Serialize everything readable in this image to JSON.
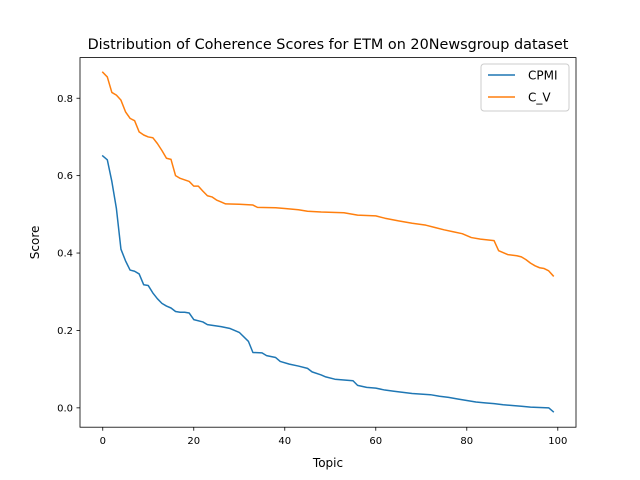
{
  "chart_data": {
    "type": "line",
    "title": "Distribution of Coherence Scores for ETM on 20Newsgroup dataset",
    "xlabel": "Topic",
    "ylabel": "Score",
    "xlim": [
      -5,
      104
    ],
    "ylim": [
      -0.05,
      0.905
    ],
    "xticks": [
      0,
      20,
      40,
      60,
      80,
      100
    ],
    "xtick_labels": [
      "0",
      "20",
      "40",
      "60",
      "80",
      "100"
    ],
    "yticks": [
      0.0,
      0.2,
      0.4,
      0.6,
      0.8
    ],
    "ytick_labels": [
      "0.0",
      "0.2",
      "0.4",
      "0.6",
      "0.8"
    ],
    "grid": false,
    "legend_position": "top-right",
    "anchors_cpmi": [
      [
        0,
        0.651
      ],
      [
        1,
        0.641
      ],
      [
        2,
        0.585
      ],
      [
        3,
        0.515
      ],
      [
        4,
        0.41
      ],
      [
        5,
        0.38
      ],
      [
        6,
        0.356
      ],
      [
        7,
        0.353
      ],
      [
        8,
        0.346
      ],
      [
        9,
        0.318
      ],
      [
        10,
        0.316
      ],
      [
        11,
        0.297
      ],
      [
        12,
        0.282
      ],
      [
        13,
        0.27
      ],
      [
        14,
        0.263
      ],
      [
        15,
        0.258
      ],
      [
        16,
        0.249
      ],
      [
        17,
        0.247
      ],
      [
        18,
        0.247
      ],
      [
        19,
        0.245
      ],
      [
        20,
        0.228
      ],
      [
        22,
        0.222
      ],
      [
        23,
        0.215
      ],
      [
        26,
        0.21
      ],
      [
        28,
        0.205
      ],
      [
        30,
        0.195
      ],
      [
        32,
        0.172
      ],
      [
        33,
        0.143
      ],
      [
        35,
        0.142
      ],
      [
        36,
        0.135
      ],
      [
        38,
        0.13
      ],
      [
        39,
        0.12
      ],
      [
        41,
        0.113
      ],
      [
        43,
        0.108
      ],
      [
        45,
        0.102
      ],
      [
        46,
        0.093
      ],
      [
        48,
        0.085
      ],
      [
        49,
        0.08
      ],
      [
        51,
        0.074
      ],
      [
        53,
        0.072
      ],
      [
        55,
        0.07
      ],
      [
        56,
        0.058
      ],
      [
        58,
        0.053
      ],
      [
        60,
        0.051
      ],
      [
        62,
        0.046
      ],
      [
        64,
        0.043
      ],
      [
        66,
        0.04
      ],
      [
        68,
        0.037
      ],
      [
        72,
        0.034
      ],
      [
        74,
        0.03
      ],
      [
        76,
        0.027
      ],
      [
        78,
        0.023
      ],
      [
        80,
        0.019
      ],
      [
        82,
        0.015
      ],
      [
        84,
        0.013
      ],
      [
        86,
        0.011
      ],
      [
        88,
        0.008
      ],
      [
        90,
        0.006
      ],
      [
        92,
        0.004
      ],
      [
        94,
        0.002
      ],
      [
        96,
        0.001
      ],
      [
        98,
        0.0
      ],
      [
        99,
        -0.01
      ]
    ],
    "anchors_cv": [
      [
        0,
        0.867
      ],
      [
        1,
        0.855
      ],
      [
        2,
        0.815
      ],
      [
        3,
        0.808
      ],
      [
        4,
        0.795
      ],
      [
        5,
        0.765
      ],
      [
        6,
        0.748
      ],
      [
        7,
        0.742
      ],
      [
        8,
        0.713
      ],
      [
        9,
        0.705
      ],
      [
        10,
        0.7
      ],
      [
        11,
        0.698
      ],
      [
        12,
        0.683
      ],
      [
        13,
        0.665
      ],
      [
        14,
        0.645
      ],
      [
        15,
        0.642
      ],
      [
        16,
        0.6
      ],
      [
        17,
        0.593
      ],
      [
        19,
        0.585
      ],
      [
        20,
        0.573
      ],
      [
        21,
        0.573
      ],
      [
        22,
        0.56
      ],
      [
        23,
        0.548
      ],
      [
        24,
        0.545
      ],
      [
        25,
        0.537
      ],
      [
        26,
        0.532
      ],
      [
        27,
        0.527
      ],
      [
        30,
        0.526
      ],
      [
        33,
        0.524
      ],
      [
        34,
        0.518
      ],
      [
        38,
        0.517
      ],
      [
        40,
        0.515
      ],
      [
        43,
        0.512
      ],
      [
        45,
        0.508
      ],
      [
        48,
        0.506
      ],
      [
        53,
        0.504
      ],
      [
        56,
        0.498
      ],
      [
        60,
        0.496
      ],
      [
        62,
        0.49
      ],
      [
        65,
        0.483
      ],
      [
        68,
        0.477
      ],
      [
        71,
        0.472
      ],
      [
        73,
        0.466
      ],
      [
        75,
        0.46
      ],
      [
        77,
        0.455
      ],
      [
        79,
        0.45
      ],
      [
        81,
        0.44
      ],
      [
        83,
        0.436
      ],
      [
        86,
        0.432
      ],
      [
        87,
        0.406
      ],
      [
        89,
        0.396
      ],
      [
        91,
        0.393
      ],
      [
        92,
        0.39
      ],
      [
        93,
        0.383
      ],
      [
        94,
        0.374
      ],
      [
        95,
        0.367
      ],
      [
        96,
        0.362
      ],
      [
        97,
        0.36
      ],
      [
        98,
        0.354
      ],
      [
        99,
        0.341
      ]
    ],
    "series": [
      {
        "name": "CPMI",
        "color": "#1f77b4"
      },
      {
        "name": "C_V",
        "color": "#ff7f0e"
      }
    ]
  }
}
